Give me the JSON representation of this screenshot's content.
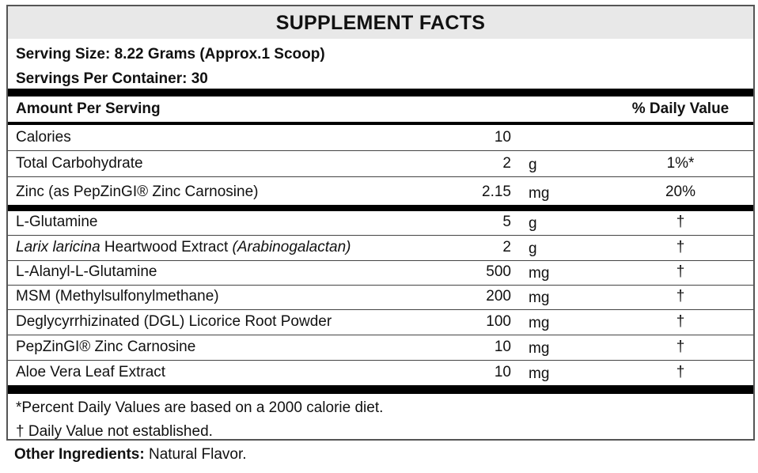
{
  "title": "SUPPLEMENT FACTS",
  "serving_size": "Serving Size: 8.22 Grams (Approx.1 Scoop)",
  "servings_per_container": "Servings Per Container: 30",
  "header": {
    "amount": "Amount Per Serving",
    "dv": "% Daily Value"
  },
  "section1": [
    {
      "name": "Calories",
      "amount": "10",
      "unit": "",
      "dv": ""
    },
    {
      "name": "Total Carbohydrate",
      "amount": "2",
      "unit": "g",
      "dv": "1%*"
    },
    {
      "name": "Zinc (as PepZinGI® Zinc Carnosine)",
      "amount": "2.15",
      "unit": "mg",
      "dv": "20%"
    }
  ],
  "section2": [
    {
      "name": "L-Glutamine",
      "amount": "5",
      "unit": "g",
      "dv": "†"
    },
    {
      "name_italic": "Larix laricina",
      "name_mid": " Heartwood Extract ",
      "name_italic2": "(Arabinogalactan)",
      "amount": "2",
      "unit": "g",
      "dv": "†"
    },
    {
      "name": "L-Alanyl-L-Glutamine",
      "amount": "500",
      "unit": "mg",
      "dv": "†"
    },
    {
      "name": "MSM (Methylsulfonylmethane)",
      "amount": "200",
      "unit": "mg",
      "dv": "†"
    },
    {
      "name": "Deglycyrrhizinated (DGL) Licorice Root Powder",
      "amount": "100",
      "unit": "mg",
      "dv": "†"
    },
    {
      "name": "PepZinGI® Zinc Carnosine",
      "amount": "10",
      "unit": "mg",
      "dv": "†"
    },
    {
      "name": "Aloe Vera Leaf Extract",
      "amount": "10",
      "unit": "mg",
      "dv": "†"
    }
  ],
  "footnotes": [
    "*Percent Daily Values are based on a 2000 calorie diet.",
    "† Daily Value not established."
  ],
  "other": {
    "label": "Other Ingredients:",
    "value": " Natural Flavor."
  }
}
